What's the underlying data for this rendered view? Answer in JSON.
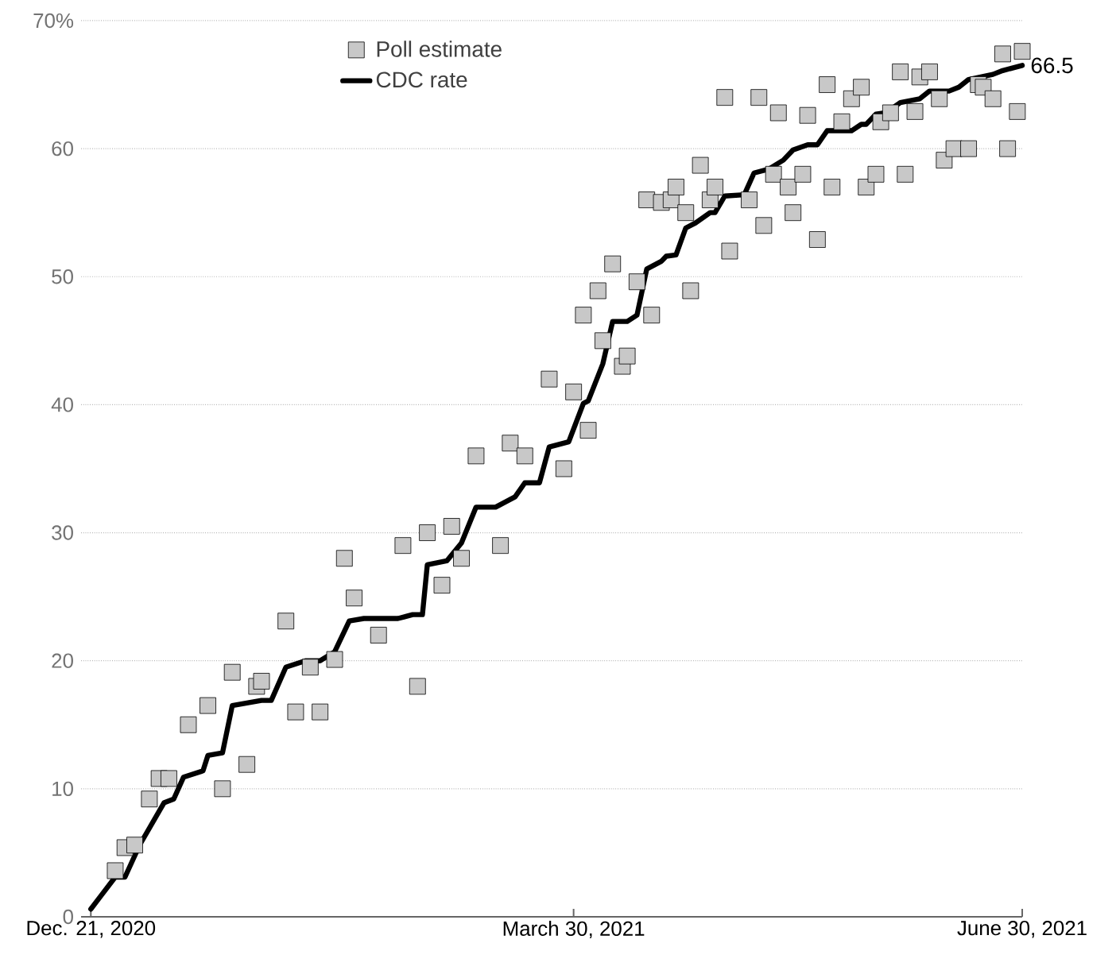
{
  "chart_data": {
    "type": "scatter",
    "xlim": [
      "2020-12-19",
      "2021-06-30"
    ],
    "ylim": [
      0,
      70
    ],
    "xticks": [
      {
        "value": "2020-12-21",
        "label": "Dec. 21, 2020"
      },
      {
        "value": "2021-03-30",
        "label": "March 30, 2021"
      },
      {
        "value": "2021-06-30",
        "label": "June 30, 2021"
      }
    ],
    "yticks": [
      0,
      10,
      20,
      30,
      40,
      50,
      60,
      {
        "value": 70,
        "label": "70%"
      }
    ],
    "grid": "y",
    "legend": "top",
    "annotations": [
      {
        "text": "66.5",
        "x": "2021-06-30",
        "y": 66.5
      }
    ],
    "series": [
      {
        "name": "Poll estimate",
        "marker": "square",
        "color": "#c8c8c8",
        "x": [
          "2020-12-26",
          "2020-12-28",
          "2020-12-30",
          "2021-01-02",
          "2021-01-04",
          "2021-01-06",
          "2021-01-10",
          "2021-01-14",
          "2021-01-17",
          "2021-01-19",
          "2021-01-22",
          "2021-01-24",
          "2021-01-25",
          "2021-01-30",
          "2021-02-01",
          "2021-02-04",
          "2021-02-06",
          "2021-02-09",
          "2021-02-11",
          "2021-02-13",
          "2021-02-18",
          "2021-02-23",
          "2021-02-26",
          "2021-02-28",
          "2021-03-03",
          "2021-03-05",
          "2021-03-07",
          "2021-03-10",
          "2021-03-15",
          "2021-03-17",
          "2021-03-20",
          "2021-03-25",
          "2021-03-28",
          "2021-03-30",
          "2021-04-01",
          "2021-04-02",
          "2021-04-04",
          "2021-04-05",
          "2021-04-07",
          "2021-04-09",
          "2021-04-10",
          "2021-04-12",
          "2021-04-14",
          "2021-04-15",
          "2021-04-17",
          "2021-04-19",
          "2021-04-20",
          "2021-04-22",
          "2021-04-23",
          "2021-04-25",
          "2021-04-27",
          "2021-04-28",
          "2021-04-30",
          "2021-05-01",
          "2021-05-05",
          "2021-05-07",
          "2021-05-08",
          "2021-05-10",
          "2021-05-11",
          "2021-05-13",
          "2021-05-14",
          "2021-05-16",
          "2021-05-17",
          "2021-05-19",
          "2021-05-21",
          "2021-05-22",
          "2021-05-24",
          "2021-05-26",
          "2021-05-28",
          "2021-05-29",
          "2021-05-31",
          "2021-06-01",
          "2021-06-03",
          "2021-06-05",
          "2021-06-06",
          "2021-06-08",
          "2021-06-09",
          "2021-06-11",
          "2021-06-13",
          "2021-06-14",
          "2021-06-16",
          "2021-06-19",
          "2021-06-21",
          "2021-06-22",
          "2021-06-24",
          "2021-06-26",
          "2021-06-27",
          "2021-06-29",
          "2021-06-30"
        ],
        "values": [
          3.6,
          5.4,
          5.6,
          9.2,
          10.8,
          10.8,
          15.0,
          16.5,
          10.0,
          19.1,
          11.9,
          18.0,
          18.4,
          23.1,
          16.0,
          19.5,
          16.0,
          20.1,
          28.0,
          24.9,
          22.0,
          29.0,
          18.0,
          30.0,
          25.9,
          30.5,
          28.0,
          36.0,
          29.0,
          37.0,
          36.0,
          42.0,
          35.0,
          41.0,
          47.0,
          38.0,
          48.9,
          45.0,
          51.0,
          43.0,
          43.8,
          49.6,
          56.0,
          47.0,
          55.8,
          56.0,
          57.0,
          55.0,
          48.9,
          58.7,
          56.0,
          57.0,
          64.0,
          52.0,
          56.0,
          64.0,
          54.0,
          58.0,
          62.8,
          57.0,
          55.0,
          58.0,
          62.6,
          52.9,
          65.0,
          57.0,
          62.1,
          63.9,
          64.8,
          57.0,
          58.0,
          62.1,
          62.8,
          66.0,
          58.0,
          62.9,
          65.6,
          66.0,
          63.9,
          59.1,
          60.0,
          60.0,
          65.0,
          64.8,
          63.9,
          67.4,
          60.0,
          62.9,
          67.6
        ]
      },
      {
        "name": "CDC rate",
        "type": "line",
        "color": "#000000",
        "x": [
          "2020-12-21",
          "2020-12-23",
          "2020-12-26",
          "2020-12-28",
          "2020-12-31",
          "2021-01-05",
          "2021-01-07",
          "2021-01-09",
          "2021-01-13",
          "2021-01-14",
          "2021-01-17",
          "2021-01-19",
          "2021-01-25",
          "2021-01-27",
          "2021-01-30",
          "2021-02-03",
          "2021-02-06",
          "2021-02-09",
          "2021-02-12",
          "2021-02-15",
          "2021-02-22",
          "2021-02-25",
          "2021-02-27",
          "2021-02-28",
          "2021-03-04",
          "2021-03-07",
          "2021-03-10",
          "2021-03-14",
          "2021-03-18",
          "2021-03-20",
          "2021-03-23",
          "2021-03-25",
          "2021-03-29",
          "2021-04-01",
          "2021-04-02",
          "2021-04-05",
          "2021-04-07",
          "2021-04-10",
          "2021-04-12",
          "2021-04-14",
          "2021-04-17",
          "2021-04-18",
          "2021-04-20",
          "2021-04-22",
          "2021-04-24",
          "2021-04-27",
          "2021-04-28",
          "2021-04-30",
          "2021-05-04",
          "2021-05-06",
          "2021-05-09",
          "2021-05-12",
          "2021-05-14",
          "2021-05-17",
          "2021-05-19",
          "2021-05-21",
          "2021-05-26",
          "2021-05-28",
          "2021-05-29",
          "2021-05-31",
          "2021-06-02",
          "2021-06-05",
          "2021-06-09",
          "2021-06-11",
          "2021-06-15",
          "2021-06-17",
          "2021-06-19",
          "2021-06-24",
          "2021-06-26",
          "2021-06-28",
          "2021-06-30"
        ],
        "values": [
          0.6,
          1.6,
          3.1,
          3.1,
          5.6,
          8.9,
          9.2,
          10.9,
          11.4,
          12.6,
          12.8,
          16.5,
          16.9,
          16.9,
          19.5,
          20.0,
          20.0,
          20.7,
          23.1,
          23.3,
          23.3,
          23.6,
          23.6,
          27.5,
          27.8,
          29.2,
          32.0,
          32.0,
          32.8,
          33.9,
          33.9,
          36.7,
          37.1,
          40.1,
          40.3,
          43.2,
          46.5,
          46.5,
          47.0,
          50.6,
          51.2,
          51.6,
          51.7,
          53.8,
          54.2,
          55.0,
          55.0,
          56.3,
          56.4,
          58.1,
          58.4,
          59.1,
          59.9,
          60.3,
          60.3,
          61.4,
          61.4,
          61.9,
          61.9,
          62.7,
          62.8,
          63.6,
          63.9,
          64.5,
          64.5,
          64.8,
          65.4,
          65.8,
          66.1,
          66.3,
          66.5
        ]
      }
    ]
  }
}
